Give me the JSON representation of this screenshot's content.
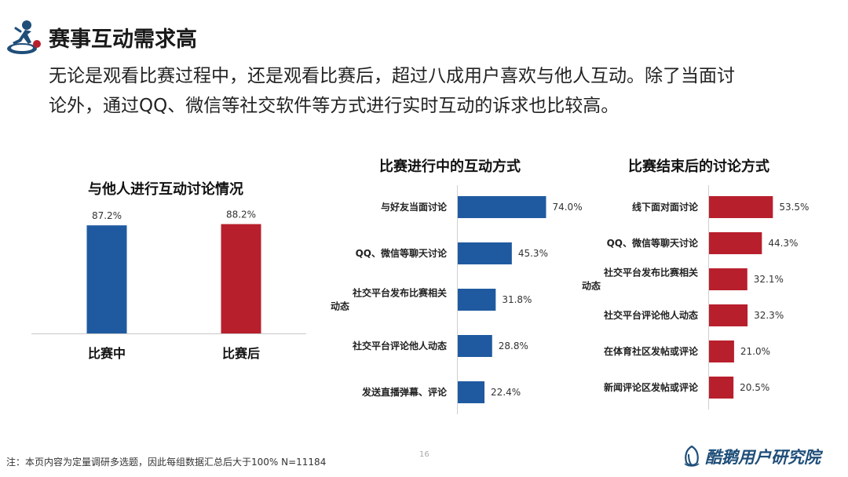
{
  "header": {
    "title": "赛事互动需求高",
    "intro_lines": [
      "无论是观看比赛过程中，还是观看比赛后，超过八成用户喜欢与他人互动。除了当面讨",
      "论外，通过QQ、微信等社交软件等方式进行实时互动的诉求也比较高。"
    ]
  },
  "colors": {
    "blue": "#1f5aa0",
    "red": "#b81f2d"
  },
  "chart_data": [
    {
      "type": "bar",
      "title": "与他人进行互动讨论情况",
      "categories": [
        "比赛中",
        "比赛后"
      ],
      "values": [
        87.2,
        88.2
      ],
      "labels": [
        "87.2%",
        "88.2%"
      ],
      "colors": [
        "#1f5aa0",
        "#b81f2d"
      ],
      "ylim": [
        0,
        100
      ],
      "grid": false
    },
    {
      "type": "bar",
      "orientation": "horizontal",
      "title": "比赛进行中的互动方式",
      "categories": [
        "与好友当面讨论",
        "QQ、微信等聊天讨论",
        "社交平台发布比赛相关动态",
        "社交平台评论他人动态",
        "发送直播弹幕、评论"
      ],
      "category_lines": [
        [
          "与好友当面讨论"
        ],
        [
          "QQ、微信等聊天讨论"
        ],
        [
          "社交平台发布比赛相关",
          "动态"
        ],
        [
          "社交平台评论他人动态"
        ],
        [
          "发送直播弹幕、评论"
        ]
      ],
      "values": [
        74.0,
        45.3,
        31.8,
        28.8,
        22.4
      ],
      "labels": [
        "74.0%",
        "45.3%",
        "31.8%",
        "28.8%",
        "22.4%"
      ],
      "color": "#1f5aa0",
      "grid": false
    },
    {
      "type": "bar",
      "orientation": "horizontal",
      "title": "比赛结束后的讨论方式",
      "categories": [
        "线下面对面讨论",
        "QQ、微信等聊天讨论",
        "社交平台发布比赛相关动态",
        "社交平台评论他人动态",
        "在体育社区发帖或评论",
        "新闻评论区发帖或评论"
      ],
      "category_lines": [
        [
          "线下面对面讨论"
        ],
        [
          "QQ、微信等聊天讨论"
        ],
        [
          "社交平台发布比赛相关",
          "动态"
        ],
        [
          "社交平台评论他人动态"
        ],
        [
          "在体育社区发帖或评论"
        ],
        [
          "新闻评论区发帖或评论"
        ]
      ],
      "values": [
        53.5,
        44.3,
        32.1,
        32.3,
        21.0,
        20.5
      ],
      "labels": [
        "53.5%",
        "44.3%",
        "32.1%",
        "32.3%",
        "21.0%",
        "20.5%"
      ],
      "color": "#b81f2d",
      "grid": false
    }
  ],
  "footer": {
    "note": "注：本页内容为定量调研多选题，因此每组数据汇总后大于100%   N=11184",
    "page_number": "16",
    "brand_name": "酷鹅用户研究院"
  }
}
